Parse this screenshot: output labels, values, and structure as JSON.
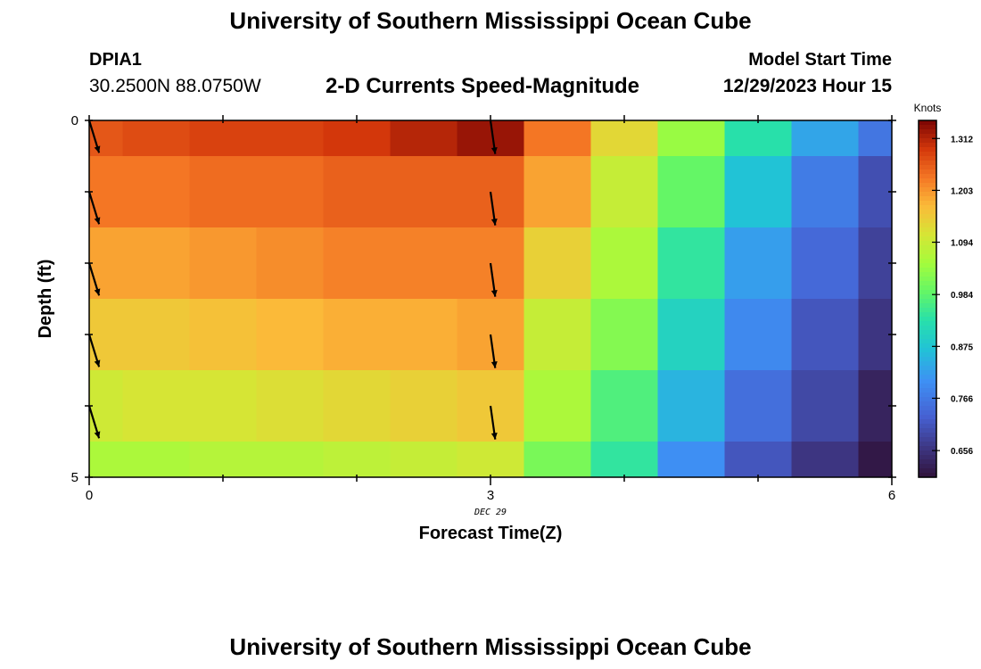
{
  "header": {
    "title": "University of Southern Mississippi Ocean Cube",
    "station_id": "DPIA1",
    "station_coords": "30.2500N  88.0750W",
    "subtitle": "2-D Currents Speed-Magnitude",
    "model_start_label": "Model Start Time",
    "model_start_value": "12/29/2023 Hour 15"
  },
  "footer": {
    "title": "University of Southern Mississippi Ocean Cube"
  },
  "chart_data": {
    "type": "heatmap",
    "xlabel": "Forecast Time(Z)",
    "ylabel": "Depth (ft)",
    "xlim": [
      0,
      6
    ],
    "ylim": [
      0,
      5
    ],
    "x_ticks": [
      0,
      3,
      6
    ],
    "y_ticks": [
      0,
      5
    ],
    "date_label": "DEC 29",
    "colorbar": {
      "title": "Knots",
      "ticks": [
        1.312,
        1.203,
        1.094,
        0.984,
        0.875,
        0.766,
        0.656
      ],
      "range": [
        0.6,
        1.35
      ]
    },
    "columns_x": [
      0,
      0.5,
      1,
      1.5,
      2,
      2.5,
      3,
      3.5,
      4,
      4.5,
      5,
      5.5,
      6
    ],
    "rows_depth": [
      0,
      1,
      2,
      3,
      4,
      5
    ],
    "speeds_knots": [
      [
        1.26,
        1.27,
        1.28,
        1.28,
        1.29,
        1.31,
        1.33,
        1.23,
        1.13,
        1.04,
        0.93,
        0.83,
        0.76
      ],
      [
        1.23,
        1.23,
        1.24,
        1.24,
        1.25,
        1.25,
        1.25,
        1.19,
        1.09,
        0.99,
        0.87,
        0.77,
        0.7
      ],
      [
        1.19,
        1.19,
        1.2,
        1.21,
        1.22,
        1.22,
        1.22,
        1.14,
        1.06,
        0.94,
        0.82,
        0.74,
        0.68
      ],
      [
        1.15,
        1.15,
        1.16,
        1.17,
        1.18,
        1.18,
        1.19,
        1.09,
        1.02,
        0.9,
        0.79,
        0.71,
        0.66
      ],
      [
        1.1,
        1.11,
        1.11,
        1.12,
        1.13,
        1.14,
        1.15,
        1.06,
        0.97,
        0.85,
        0.75,
        0.69,
        0.63
      ],
      [
        1.06,
        1.06,
        1.07,
        1.07,
        1.08,
        1.09,
        1.1,
        1.01,
        0.94,
        0.8,
        0.71,
        0.66,
        0.61
      ]
    ],
    "vectors": [
      {
        "x": 0,
        "depth": 0,
        "angle_deg": 163
      },
      {
        "x": 0,
        "depth": 1,
        "angle_deg": 163
      },
      {
        "x": 0,
        "depth": 2,
        "angle_deg": 163
      },
      {
        "x": 0,
        "depth": 3,
        "angle_deg": 163
      },
      {
        "x": 0,
        "depth": 4,
        "angle_deg": 163
      },
      {
        "x": 3,
        "depth": 0,
        "angle_deg": 172
      },
      {
        "x": 3,
        "depth": 1,
        "angle_deg": 172
      },
      {
        "x": 3,
        "depth": 2,
        "angle_deg": 172
      },
      {
        "x": 3,
        "depth": 3,
        "angle_deg": 172
      },
      {
        "x": 3,
        "depth": 4,
        "angle_deg": 172
      }
    ],
    "vector_color": "#000000"
  }
}
